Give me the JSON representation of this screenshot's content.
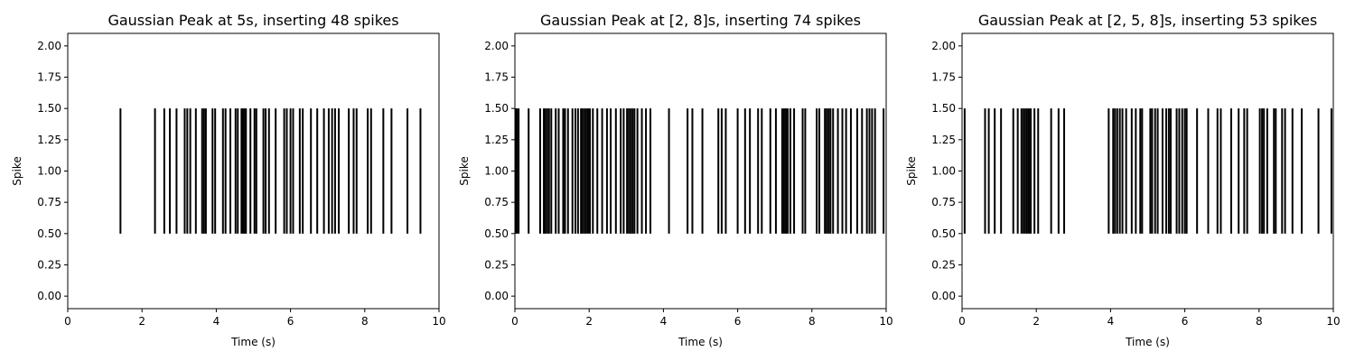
{
  "chart_data": [
    {
      "type": "eventplot",
      "title": "Gaussian Peak at 5s, inserting 48 spikes",
      "xlabel": "Time (s)",
      "ylabel": "Spike",
      "xlim": [
        0,
        10
      ],
      "ylim": [
        -0.1,
        2.1
      ],
      "xticks": [
        0,
        2,
        4,
        6,
        8,
        10
      ],
      "xtick_labels": [
        "0",
        "2",
        "4",
        "6",
        "8",
        "10"
      ],
      "yticks": [
        0.0,
        0.25,
        0.5,
        0.75,
        1.0,
        1.25,
        1.5,
        1.75,
        2.0
      ],
      "ytick_labels": [
        "0.00",
        "0.25",
        "0.50",
        "0.75",
        "1.00",
        "1.25",
        "1.50",
        "1.75",
        "2.00"
      ],
      "line_range": [
        0.5,
        1.5
      ],
      "color": "#000000",
      "grid": false,
      "spike_times": [
        1.42,
        2.35,
        2.6,
        2.75,
        2.93,
        3.15,
        3.22,
        3.3,
        3.45,
        3.62,
        3.67,
        3.72,
        3.9,
        3.97,
        4.18,
        4.25,
        4.38,
        4.52,
        4.58,
        4.68,
        4.72,
        4.77,
        4.8,
        4.92,
        5.03,
        5.08,
        5.27,
        5.33,
        5.42,
        5.6,
        5.83,
        5.9,
        6.0,
        6.07,
        6.25,
        6.33,
        6.55,
        6.72,
        6.9,
        7.03,
        7.12,
        7.2,
        7.3,
        7.57,
        7.7,
        7.78,
        8.08,
        8.17,
        8.5,
        8.72,
        9.15,
        9.5
      ]
    },
    {
      "type": "eventplot",
      "title": "Gaussian Peak at [2, 8]s, inserting 74 spikes",
      "xlabel": "Time (s)",
      "ylabel": "Spike",
      "xlim": [
        0,
        10
      ],
      "ylim": [
        -0.1,
        2.1
      ],
      "xticks": [
        0,
        2,
        4,
        6,
        8,
        10
      ],
      "xtick_labels": [
        "0",
        "2",
        "4",
        "6",
        "8",
        "10"
      ],
      "yticks": [
        0.0,
        0.25,
        0.5,
        0.75,
        1.0,
        1.25,
        1.5,
        1.75,
        2.0
      ],
      "ytick_labels": [
        "0.00",
        "0.25",
        "0.50",
        "0.75",
        "1.00",
        "1.25",
        "1.50",
        "1.75",
        "2.00"
      ],
      "line_range": [
        0.5,
        1.5
      ],
      "color": "#000000",
      "grid": false,
      "spike_times": [
        0.02,
        0.05,
        0.1,
        0.37,
        0.68,
        0.78,
        0.82,
        0.87,
        0.92,
        0.98,
        1.1,
        1.18,
        1.3,
        1.35,
        1.43,
        1.55,
        1.63,
        1.7,
        1.78,
        1.82,
        1.87,
        1.92,
        1.97,
        2.02,
        2.1,
        2.22,
        2.35,
        2.48,
        2.58,
        2.72,
        2.85,
        2.93,
        3.02,
        3.07,
        3.12,
        3.17,
        3.22,
        3.3,
        3.42,
        3.53,
        3.65,
        4.15,
        4.65,
        4.78,
        5.05,
        5.48,
        5.57,
        5.68,
        6.0,
        6.2,
        6.33,
        6.55,
        6.65,
        6.88,
        7.03,
        7.2,
        7.25,
        7.3,
        7.35,
        7.42,
        7.52,
        7.75,
        7.82,
        8.13,
        8.2,
        8.35,
        8.4,
        8.45,
        8.5,
        8.57,
        8.7,
        8.82,
        8.92,
        9.05,
        9.22,
        9.35,
        9.48,
        9.55,
        9.62,
        9.7,
        9.93
      ]
    },
    {
      "type": "eventplot",
      "title": "Gaussian Peak at [2, 5, 8]s, inserting 53 spikes",
      "xlabel": "Time (s)",
      "ylabel": "Spike",
      "xlim": [
        0,
        10
      ],
      "ylim": [
        -0.1,
        2.1
      ],
      "xticks": [
        0,
        2,
        4,
        6,
        8,
        10
      ],
      "xtick_labels": [
        "0",
        "2",
        "4",
        "6",
        "8",
        "10"
      ],
      "yticks": [
        0.0,
        0.25,
        0.5,
        0.75,
        1.0,
        1.25,
        1.5,
        1.75,
        2.0
      ],
      "ytick_labels": [
        "0.00",
        "0.25",
        "0.50",
        "0.75",
        "1.00",
        "1.25",
        "1.50",
        "1.75",
        "2.00"
      ],
      "line_range": [
        0.5,
        1.5
      ],
      "color": "#000000",
      "grid": false,
      "spike_times": [
        0.07,
        0.62,
        0.72,
        0.88,
        1.05,
        1.38,
        1.5,
        1.6,
        1.65,
        1.7,
        1.75,
        1.8,
        1.85,
        1.95,
        2.05,
        2.4,
        2.6,
        2.75,
        3.95,
        4.07,
        4.12,
        4.18,
        4.25,
        4.32,
        4.42,
        4.57,
        4.68,
        4.8,
        4.85,
        5.07,
        5.12,
        5.2,
        5.27,
        5.4,
        5.5,
        5.57,
        5.62,
        5.78,
        5.85,
        5.93,
        6.0,
        6.05,
        6.33,
        6.63,
        6.88,
        6.97,
        7.25,
        7.45,
        7.6,
        7.68,
        8.02,
        8.08,
        8.13,
        8.22,
        8.4,
        8.45,
        8.62,
        8.7,
        8.9,
        9.15,
        9.6,
        9.95
      ]
    }
  ]
}
